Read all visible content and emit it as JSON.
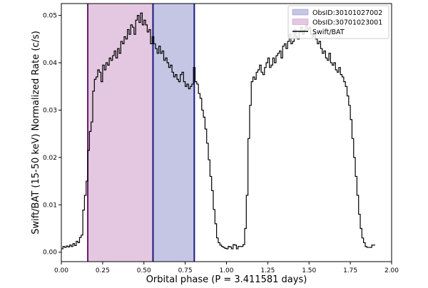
{
  "chart_data": {
    "type": "line",
    "step": true,
    "xlabel": "Orbital phase (P = 3.411581 days)",
    "ylabel": "Swift/BAT (15-50 keV) Normalized Rate (c/s)",
    "xlim": [
      0.0,
      2.0
    ],
    "ylim": [
      -0.002,
      0.0525
    ],
    "x_ticks": [
      0.0,
      0.25,
      0.5,
      0.75,
      1.0,
      1.25,
      1.5,
      1.75,
      2.0
    ],
    "x_tick_labels": [
      "0.00",
      "0.25",
      "0.50",
      "0.75",
      "1.00",
      "1.25",
      "1.50",
      "1.75",
      "2.00"
    ],
    "y_ticks": [
      0.0,
      0.01,
      0.02,
      0.03,
      0.04,
      0.05
    ],
    "y_tick_labels": [
      "0.00",
      "0.01",
      "0.02",
      "0.03",
      "0.04",
      "0.05"
    ],
    "grid": false,
    "legend": {
      "placement": "top-right",
      "entries": [
        {
          "label": "ObsID:30101027002",
          "kind": "patch",
          "color": "#8c8ec8"
        },
        {
          "label": "ObsID:30701023001",
          "kind": "patch",
          "color": "#c98fc2"
        },
        {
          "label": "Swift/BAT",
          "kind": "line",
          "color": "#000000"
        }
      ]
    },
    "spans": [
      {
        "name": "ObsID:30101027002",
        "x0": 0.555,
        "x1": 0.805,
        "fill": "#8c8ec8",
        "fill_opacity": 0.5,
        "edge": "#1a1a80"
      },
      {
        "name": "ObsID:30701023001",
        "x0": 0.16,
        "x1": 0.555,
        "fill": "#c98fc2",
        "fill_opacity": 0.5,
        "edge": "#6a1a6a"
      }
    ],
    "series": [
      {
        "name": "Swift/BAT",
        "color": "#000000",
        "bin_width": 0.01,
        "x_start": 0.0,
        "values": [
          0.0007,
          0.0012,
          0.001,
          0.0013,
          0.0011,
          0.0015,
          0.0012,
          0.0018,
          0.0014,
          0.0023,
          0.002,
          0.0031,
          0.0036,
          0.0089,
          0.012,
          0.015,
          0.0215,
          0.0255,
          0.0275,
          0.034,
          0.0365,
          0.037,
          0.0385,
          0.038,
          0.036,
          0.0395,
          0.0385,
          0.04,
          0.0395,
          0.041,
          0.0405,
          0.0415,
          0.0425,
          0.041,
          0.043,
          0.042,
          0.0445,
          0.044,
          0.0455,
          0.045,
          0.047,
          0.046,
          0.048,
          0.0475,
          0.046,
          0.049,
          0.05,
          0.0485,
          0.0505,
          0.048,
          0.049,
          0.048,
          0.0465,
          0.047,
          0.044,
          0.0455,
          0.044,
          0.043,
          0.042,
          0.0435,
          0.042,
          0.0425,
          0.0405,
          0.041,
          0.04,
          0.039,
          0.0395,
          0.038,
          0.037,
          0.0375,
          0.0365,
          0.036,
          0.0375,
          0.038,
          0.036,
          0.035,
          0.0355,
          0.0345,
          0.035,
          0.0355,
          0.039,
          0.036,
          0.0355,
          0.0335,
          0.0325,
          0.03,
          0.0285,
          0.026,
          0.023,
          0.0195,
          0.016,
          0.013,
          0.009,
          0.006,
          0.003,
          0.002,
          0.0015,
          0.0012,
          0.001,
          0.0008,
          0.0007,
          0.0012,
          0.0011,
          0.0007,
          0.0016,
          0.0015,
          0.0007,
          0.0012,
          0.0012,
          0.0012,
          0.0016,
          0.005,
          0.012,
          0.024,
          0.031,
          0.036,
          0.037,
          0.0365,
          0.038,
          0.0385,
          0.0395,
          0.038,
          0.0375,
          0.039,
          0.04,
          0.041,
          0.039,
          0.0395,
          0.041,
          0.04,
          0.0415,
          0.042,
          0.0425,
          0.041,
          0.0435,
          0.044,
          0.043,
          0.0445,
          0.046,
          0.044,
          0.0445,
          0.047,
          0.0455,
          0.045,
          0.0465,
          0.0475,
          0.046,
          0.047,
          0.048,
          0.047,
          0.0475,
          0.046,
          0.0455,
          0.0465,
          0.045,
          0.044,
          0.0445,
          0.043,
          0.042,
          0.0425,
          0.041,
          0.0405,
          0.042,
          0.04,
          0.0395,
          0.04,
          0.0385,
          0.038,
          0.039,
          0.0375,
          0.037,
          0.036,
          0.035,
          0.033,
          0.031,
          0.028,
          0.024,
          0.02,
          0.016,
          0.012,
          0.008,
          0.005,
          0.003,
          0.002,
          0.0012,
          0.001,
          0.001,
          0.001,
          0.0015,
          0.0015
        ]
      }
    ]
  }
}
